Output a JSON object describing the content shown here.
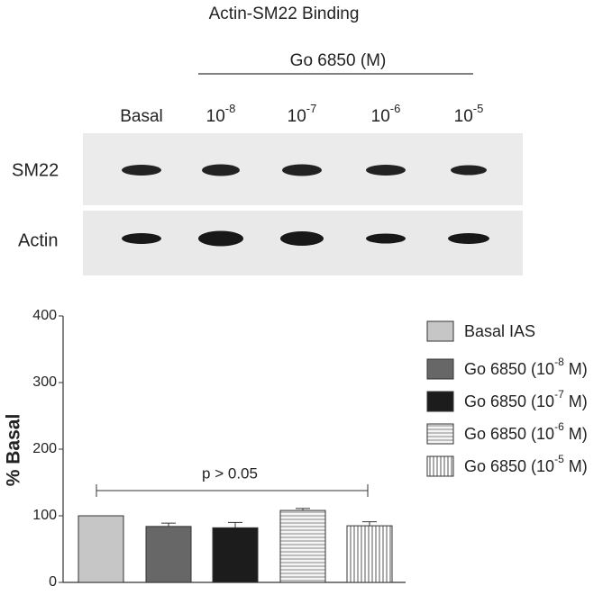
{
  "blot": {
    "title": "Actin-SM22 Binding",
    "treatment": "Go 6850 (M)",
    "lanes": [
      {
        "base": "Basal"
      },
      {
        "base": "10",
        "exp": "-8"
      },
      {
        "base": "10",
        "exp": "-7"
      },
      {
        "base": "10",
        "exp": "-6"
      },
      {
        "base": "10",
        "exp": "-5"
      }
    ],
    "rows": [
      "SM22",
      "Actin"
    ]
  },
  "chart_data": {
    "type": "bar",
    "ylabel": "% Basal",
    "annotation": "p > 0.05",
    "categories": [
      null,
      null,
      null,
      null,
      null
    ],
    "values": [
      100,
      84,
      82,
      108,
      85
    ],
    "errors": [
      0,
      5,
      8,
      3,
      6
    ],
    "colors": [
      "#c6c6c6",
      "#676767",
      "#1c1c1c",
      "#d8d8d8",
      "#ffffff"
    ],
    "patterns": [
      "solid",
      "solid",
      "solid",
      "horizontal",
      "vertical"
    ],
    "legend": [
      {
        "pre": "Basal IAS"
      },
      {
        "pre": "Go 6850 (10",
        "exp": "-8",
        "post": " M)"
      },
      {
        "pre": "Go 6850 (10",
        "exp": "-7",
        "post": " M)"
      },
      {
        "pre": "Go 6850 (10",
        "exp": "-6",
        "post": " M)"
      },
      {
        "pre": "Go 6850 (10",
        "exp": "-5",
        "post": " M)"
      }
    ],
    "ylim": [
      0,
      400
    ],
    "yticks": [
      0,
      100,
      200,
      300,
      400
    ]
  }
}
